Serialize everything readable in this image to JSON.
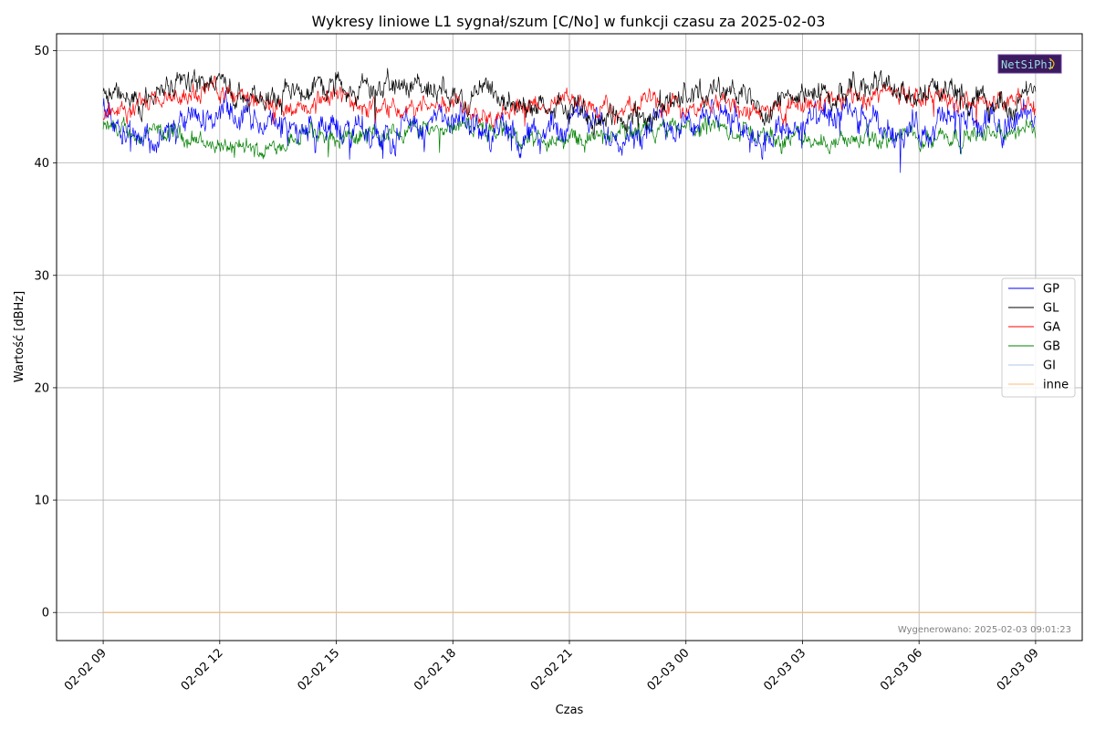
{
  "chart_data": {
    "type": "line",
    "title": "Wykresy liniowe L1 sygnał/szum [C/No] w funkcji czasu za 2025-02-03",
    "xlabel": "Czas",
    "ylabel": "Wartość [dBHz]",
    "x_ticks": [
      "02-02 09",
      "02-02 12",
      "02-02 15",
      "02-02 18",
      "02-02 21",
      "02-03 00",
      "02-03 03",
      "02-03 06",
      "02-03 09"
    ],
    "x_range": [
      "2025-02-02 09:00",
      "2025-02-03 09:00"
    ],
    "xlim": [
      "2025-02-02 07:48",
      "2025-02-03 10:12"
    ],
    "ylim": [
      -2.5,
      51.5
    ],
    "y_ticks": [
      "0",
      "10",
      "20",
      "30",
      "40",
      "50"
    ],
    "grid": true,
    "legend_position": "right",
    "footer": "Wygenerowano: 2025-02-03 09:01:23",
    "logo": "NetSiPhi",
    "series": [
      {
        "name": "GP",
        "color": "#0000ff",
        "x": [
          "2025-02-02 09:00",
          "2025-02-02 10:15",
          "2025-02-02 12:00",
          "2025-02-02 13:00",
          "2025-02-02 14:00",
          "2025-02-02 15:00",
          "2025-02-02 16:00",
          "2025-02-02 17:00",
          "2025-02-02 18:00",
          "2025-02-02 19:00",
          "2025-02-02 20:00",
          "2025-02-02 21:00",
          "2025-02-02 22:00",
          "2025-02-02 23:00",
          "2025-02-03 00:00",
          "2025-02-03 01:00",
          "2025-02-03 02:00",
          "2025-02-03 03:00",
          "2025-02-03 04:00",
          "2025-02-03 05:00",
          "2025-02-03 06:00",
          "2025-02-03 07:00",
          "2025-02-03 08:00",
          "2025-02-03 09:00"
        ],
        "values": [
          45.0,
          42.0,
          44.5,
          43.5,
          43.0,
          43.0,
          42.5,
          43.5,
          43.5,
          43.0,
          42.0,
          44.0,
          43.0,
          43.0,
          44.0,
          44.0,
          42.5,
          43.5,
          44.0,
          43.0,
          43.0,
          44.0,
          43.5,
          44.5
        ],
        "noise": 1.3
      },
      {
        "name": "GL",
        "color": "#000000",
        "x": [
          "2025-02-02 09:00",
          "2025-02-02 10:00",
          "2025-02-02 11:00",
          "2025-02-02 12:00",
          "2025-02-02 13:00",
          "2025-02-02 14:00",
          "2025-02-02 15:00",
          "2025-02-02 16:00",
          "2025-02-02 17:00",
          "2025-02-02 18:00",
          "2025-02-02 19:00",
          "2025-02-02 20:00",
          "2025-02-02 21:00",
          "2025-02-02 22:00",
          "2025-02-02 23:00",
          "2025-02-03 00:00",
          "2025-02-03 01:00",
          "2025-02-03 02:00",
          "2025-02-03 03:00",
          "2025-02-03 04:00",
          "2025-02-03 05:00",
          "2025-02-03 06:00",
          "2025-02-03 07:00",
          "2025-02-03 08:00",
          "2025-02-03 09:00"
        ],
        "values": [
          46.0,
          45.5,
          47.5,
          47.0,
          46.0,
          46.5,
          47.5,
          46.5,
          47.0,
          46.5,
          45.5,
          45.0,
          45.0,
          44.0,
          44.0,
          46.5,
          46.5,
          45.0,
          46.0,
          46.5,
          47.0,
          46.0,
          46.0,
          45.0,
          46.0
        ],
        "noise": 1.1
      },
      {
        "name": "GA",
        "color": "#ff0000",
        "x": [
          "2025-02-02 09:00",
          "2025-02-02 10:00",
          "2025-02-02 11:00",
          "2025-02-02 12:00",
          "2025-02-02 13:00",
          "2025-02-02 14:00",
          "2025-02-02 15:00",
          "2025-02-02 16:00",
          "2025-02-02 17:00",
          "2025-02-02 18:00",
          "2025-02-02 19:00",
          "2025-02-02 20:00",
          "2025-02-02 21:00",
          "2025-02-02 22:00",
          "2025-02-02 23:00",
          "2025-02-03 00:00",
          "2025-02-03 01:00",
          "2025-02-03 02:00",
          "2025-02-03 03:00",
          "2025-02-03 04:00",
          "2025-02-03 05:00",
          "2025-02-03 06:00",
          "2025-02-03 07:00",
          "2025-02-03 08:00",
          "2025-02-03 09:00"
        ],
        "values": [
          44.5,
          45.0,
          46.0,
          46.5,
          45.5,
          44.5,
          46.0,
          45.0,
          45.0,
          45.5,
          44.5,
          45.0,
          45.5,
          44.5,
          45.5,
          44.5,
          45.5,
          44.5,
          45.0,
          45.5,
          46.5,
          46.0,
          45.5,
          45.5,
          45.0
        ],
        "noise": 0.9
      },
      {
        "name": "GB",
        "color": "#008000",
        "x": [
          "2025-02-02 09:00",
          "2025-02-02 10:00",
          "2025-02-02 11:00",
          "2025-02-02 12:00",
          "2025-02-02 13:00",
          "2025-02-02 14:00",
          "2025-02-02 15:00",
          "2025-02-02 16:00",
          "2025-02-02 17:00",
          "2025-02-02 18:00",
          "2025-02-02 19:00",
          "2025-02-02 20:00",
          "2025-02-02 21:00",
          "2025-02-02 22:00",
          "2025-02-02 23:00",
          "2025-02-03 00:00",
          "2025-02-03 01:00",
          "2025-02-03 02:00",
          "2025-02-03 03:00",
          "2025-02-03 04:00",
          "2025-02-03 05:00",
          "2025-02-03 06:00",
          "2025-02-03 07:00",
          "2025-02-03 08:00",
          "2025-02-03 09:00"
        ],
        "values": [
          43.0,
          42.5,
          42.5,
          41.5,
          41.0,
          42.5,
          42.5,
          42.5,
          43.0,
          43.5,
          43.0,
          42.0,
          42.0,
          42.5,
          42.5,
          43.0,
          43.0,
          42.5,
          42.0,
          42.0,
          42.0,
          42.5,
          42.5,
          42.5,
          43.0
        ],
        "noise": 0.8
      },
      {
        "name": "GI",
        "color": "#aec7e8",
        "x": [
          "2025-02-02 09:00",
          "2025-02-03 09:00"
        ],
        "values": [
          0,
          0
        ],
        "noise": 0
      },
      {
        "name": "inne",
        "color": "#ffbb78",
        "x": [
          "2025-02-02 09:00",
          "2025-02-03 09:00"
        ],
        "values": [
          0,
          0
        ],
        "noise": 0
      }
    ]
  }
}
